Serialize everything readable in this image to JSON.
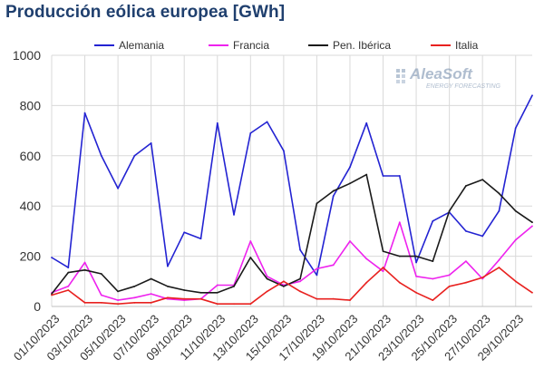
{
  "chart_data": {
    "type": "line",
    "title": "Producción eólica europea [GWh]",
    "xlabel": "",
    "ylabel": "",
    "ylim": [
      0,
      1000
    ],
    "yticks": [
      0,
      200,
      400,
      600,
      800,
      1000
    ],
    "grid": true,
    "legend_position": "top",
    "x_tick_labels": [
      "01/10/2023",
      "03/10/2023",
      "05/10/2023",
      "07/10/2023",
      "09/10/2023",
      "11/10/2023",
      "13/10/2023",
      "15/10/2023",
      "17/10/2023",
      "19/10/2023",
      "21/10/2023",
      "23/10/2023",
      "25/10/2023",
      "27/10/2023",
      "29/10/2023"
    ],
    "x": [
      "01/10/2023",
      "02/10/2023",
      "03/10/2023",
      "04/10/2023",
      "05/10/2023",
      "06/10/2023",
      "07/10/2023",
      "08/10/2023",
      "09/10/2023",
      "10/10/2023",
      "11/10/2023",
      "12/10/2023",
      "13/10/2023",
      "14/10/2023",
      "15/10/2023",
      "16/10/2023",
      "17/10/2023",
      "18/10/2023",
      "19/10/2023",
      "20/10/2023",
      "21/10/2023",
      "22/10/2023",
      "23/10/2023",
      "24/10/2023",
      "25/10/2023",
      "26/10/2023",
      "27/10/2023",
      "28/10/2023",
      "29/10/2023",
      "30/10/2023"
    ],
    "series": [
      {
        "name": "Alemania",
        "color": "#2323d2",
        "values": [
          195,
          155,
          770,
          600,
          470,
          600,
          650,
          160,
          295,
          270,
          730,
          365,
          690,
          735,
          620,
          225,
          125,
          440,
          555,
          730,
          520,
          520,
          175,
          340,
          375,
          300,
          280,
          380,
          710,
          840
        ]
      },
      {
        "name": "Francia",
        "color": "#ee22ee",
        "values": [
          55,
          80,
          175,
          45,
          25,
          35,
          50,
          30,
          25,
          30,
          85,
          85,
          260,
          120,
          85,
          100,
          150,
          165,
          260,
          190,
          140,
          335,
          120,
          110,
          125,
          180,
          110,
          185,
          265,
          320
        ]
      },
      {
        "name": "Pen. Ibérica",
        "color": "#1a1a1a",
        "values": [
          50,
          135,
          145,
          130,
          60,
          80,
          110,
          80,
          65,
          55,
          55,
          80,
          195,
          110,
          80,
          110,
          410,
          460,
          490,
          525,
          220,
          200,
          200,
          180,
          380,
          480,
          505,
          450,
          380,
          335
        ]
      },
      {
        "name": "Italia",
        "color": "#e8211f",
        "values": [
          45,
          65,
          15,
          15,
          10,
          15,
          15,
          35,
          30,
          30,
          10,
          10,
          10,
          60,
          100,
          60,
          30,
          30,
          25,
          95,
          155,
          95,
          55,
          25,
          80,
          95,
          115,
          155,
          100,
          55
        ]
      }
    ]
  },
  "logo": {
    "name": "AleaSoft",
    "tagline": "ENERGY FORECASTING"
  }
}
